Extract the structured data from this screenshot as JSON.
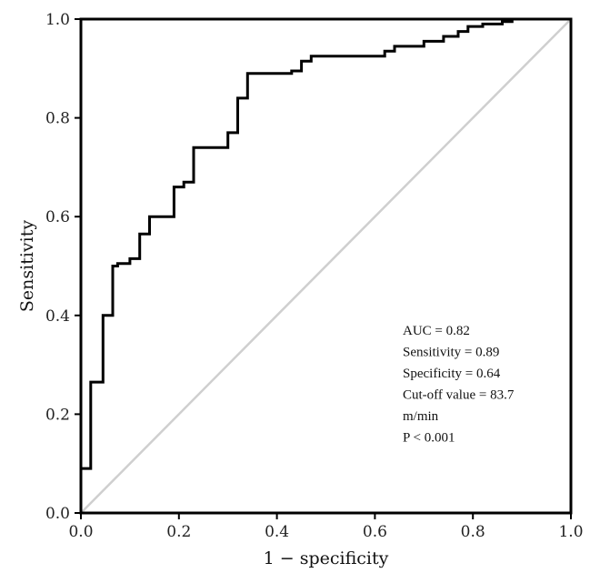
{
  "chart_data": {
    "type": "line",
    "title": "",
    "xlabel": "1 − specificity",
    "ylabel": "Sensitivity",
    "xlim": [
      0,
      1
    ],
    "ylim": [
      0,
      1
    ],
    "xticks": [
      "0.0",
      "0.2",
      "0.4",
      "0.6",
      "0.8",
      "1.0"
    ],
    "yticks": [
      "0.0",
      "0.2",
      "0.4",
      "0.6",
      "0.8",
      "1.0"
    ],
    "grid": false,
    "roc_curve": {
      "x": [
        0,
        0,
        0.02,
        0.02,
        0.045,
        0.045,
        0.065,
        0.065,
        0.075,
        0.075,
        0.1,
        0.1,
        0.12,
        0.12,
        0.14,
        0.14,
        0.19,
        0.19,
        0.21,
        0.21,
        0.23,
        0.23,
        0.3,
        0.3,
        0.32,
        0.32,
        0.34,
        0.34,
        0.36,
        0.36,
        0.43,
        0.43,
        0.45,
        0.45,
        0.47,
        0.47,
        0.5,
        0.5,
        0.62,
        0.62,
        0.64,
        0.64,
        0.7,
        0.7,
        0.74,
        0.74,
        0.77,
        0.77,
        0.79,
        0.79,
        0.82,
        0.82,
        0.86,
        0.86,
        0.88,
        0.88,
        1.0
      ],
      "y": [
        0,
        0.09,
        0.09,
        0.265,
        0.265,
        0.4,
        0.4,
        0.5,
        0.5,
        0.505,
        0.505,
        0.515,
        0.515,
        0.565,
        0.565,
        0.6,
        0.6,
        0.66,
        0.66,
        0.67,
        0.67,
        0.74,
        0.74,
        0.77,
        0.77,
        0.84,
        0.84,
        0.89,
        0.89,
        0.89,
        0.89,
        0.895,
        0.895,
        0.915,
        0.915,
        0.925,
        0.925,
        0.925,
        0.925,
        0.935,
        0.935,
        0.945,
        0.945,
        0.955,
        0.955,
        0.965,
        0.965,
        0.975,
        0.975,
        0.985,
        0.985,
        0.99,
        0.99,
        0.995,
        0.995,
        1.0,
        1.0
      ]
    },
    "reference_line": {
      "x": [
        0,
        1
      ],
      "y": [
        0,
        1
      ],
      "color": "#cfcfcf"
    },
    "curve_color": "#000000",
    "annotation": [
      "AUC = 0.82",
      "Sensitivity = 0.89",
      "Specificity = 0.64",
      "Cut-off value = 83.7",
      "m/min",
      "P < 0.001"
    ]
  }
}
